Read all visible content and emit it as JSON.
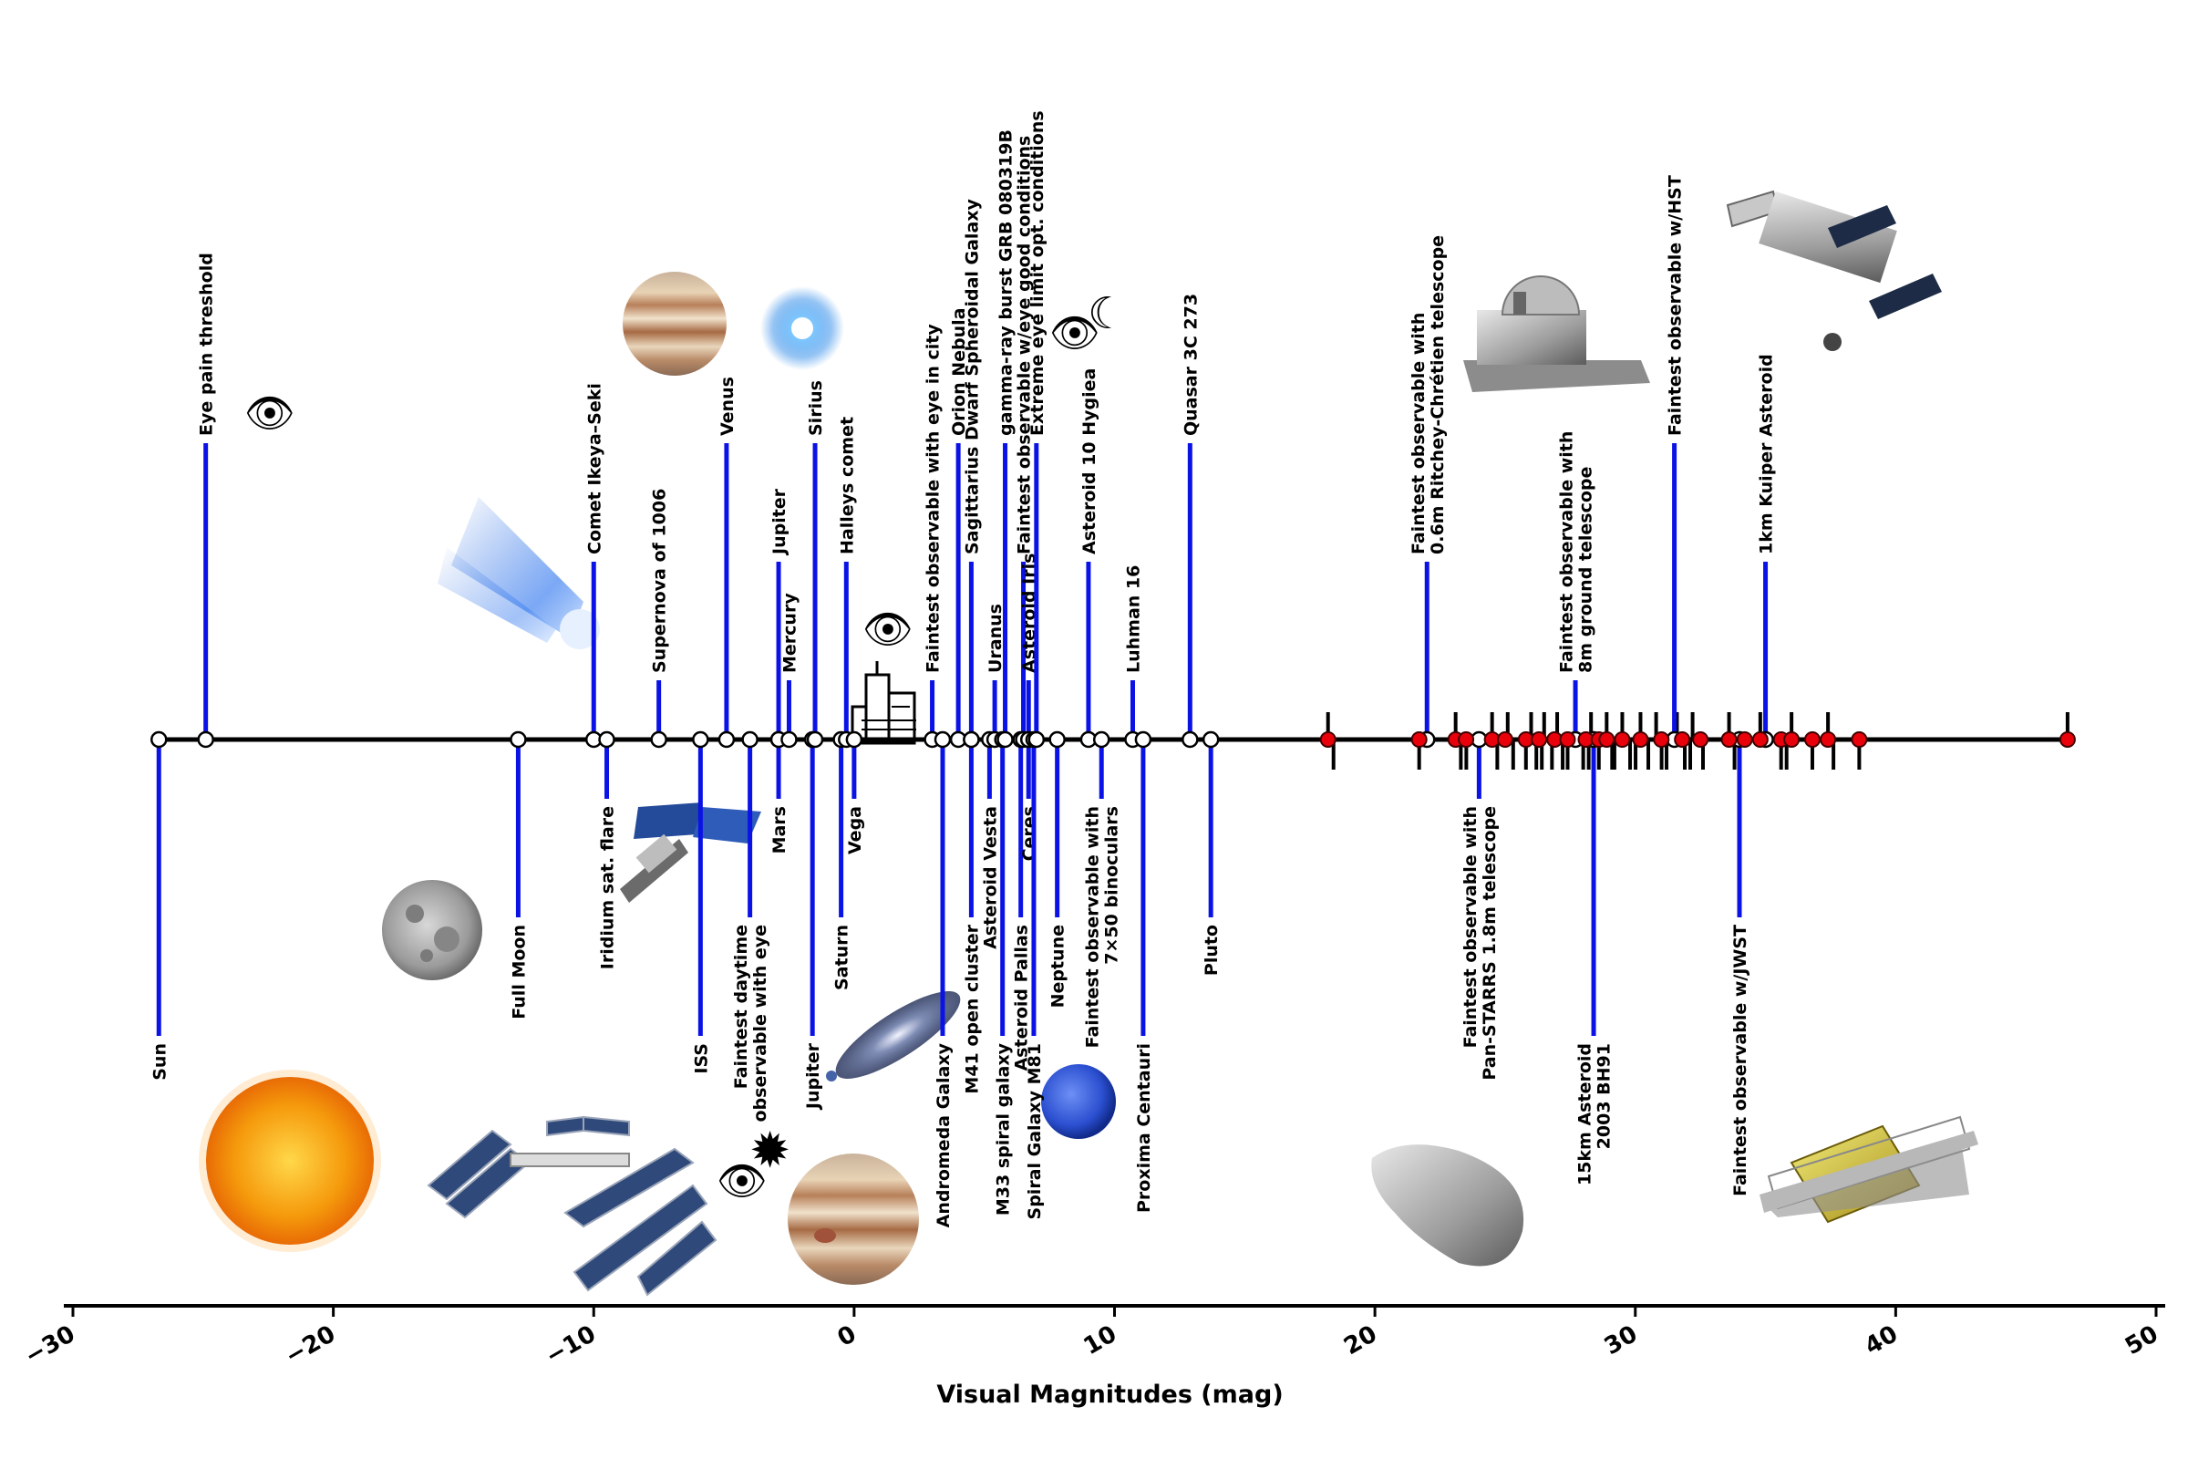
{
  "chart_data": {
    "type": "timeline",
    "xlabel": "Visual Magnitudes (mag)",
    "xlim": [
      -30,
      50
    ],
    "xticks": [
      -30,
      -20,
      -10,
      0,
      10,
      20,
      30,
      40,
      50
    ],
    "objects": [
      {
        "label": [
          "Sun"
        ],
        "mag": -26.7,
        "side": "below",
        "len": 3
      },
      {
        "label": [
          "Eye pain threshold"
        ],
        "mag": -24.9,
        "side": "above",
        "len": 3
      },
      {
        "label": [
          "Full Moon"
        ],
        "mag": -12.9,
        "side": "below",
        "len": 2
      },
      {
        "label": [
          "Comet Ikeya–Seki"
        ],
        "mag": -10.0,
        "side": "above",
        "len": 2
      },
      {
        "label": [
          "Iridium sat. flare"
        ],
        "mag": -9.5,
        "side": "below",
        "len": 1
      },
      {
        "label": [
          "Supernova of 1006"
        ],
        "mag": -7.5,
        "side": "above",
        "len": 1
      },
      {
        "label": [
          "ISS"
        ],
        "mag": -5.9,
        "side": "below",
        "len": 3
      },
      {
        "label": [
          "Venus"
        ],
        "mag": -4.9,
        "side": "above",
        "len": 3
      },
      {
        "label": [
          "Faintest daytime",
          "observable with eye"
        ],
        "mag": -4.0,
        "side": "below",
        "len": 2
      },
      {
        "label": [
          "Jupiter"
        ],
        "mag": -2.9,
        "side": "above",
        "len": 2
      },
      {
        "label": [
          "Mars"
        ],
        "mag": -2.9,
        "side": "below",
        "len": 1
      },
      {
        "label": [
          "Mercury"
        ],
        "mag": -2.5,
        "side": "above",
        "len": 1
      },
      {
        "label": [
          "Jupiter"
        ],
        "mag": -1.6,
        "side": "below",
        "len": 3
      },
      {
        "label": [
          "Sirius"
        ],
        "mag": -1.5,
        "side": "above",
        "len": 3
      },
      {
        "label": [
          "Saturn"
        ],
        "mag": -0.5,
        "side": "below",
        "len": 2
      },
      {
        "label": [
          "Halleys comet"
        ],
        "mag": -0.3,
        "side": "above",
        "len": 2
      },
      {
        "label": [
          "Vega"
        ],
        "mag": 0.0,
        "side": "below",
        "len": 1
      },
      {
        "label": [
          "Faintest observable with eye in city"
        ],
        "mag": 3.0,
        "side": "above",
        "len": 1
      },
      {
        "label": [
          "Andromeda Galaxy"
        ],
        "mag": 3.4,
        "side": "below",
        "len": 3
      },
      {
        "label": [
          "Orion Nebula"
        ],
        "mag": 4.0,
        "side": "above",
        "len": 3
      },
      {
        "label": [
          "M41 open cluster"
        ],
        "mag": 4.5,
        "side": "below",
        "len": 2
      },
      {
        "label": [
          "Sagittarius Dwarf Spheroidal Galaxy"
        ],
        "mag": 4.5,
        "side": "above",
        "len": 2
      },
      {
        "label": [
          "Asteroid Vesta"
        ],
        "mag": 5.2,
        "side": "below",
        "len": 1
      },
      {
        "label": [
          "Uranus"
        ],
        "mag": 5.4,
        "side": "above",
        "len": 1
      },
      {
        "label": [
          "M33 spiral galaxy"
        ],
        "mag": 5.7,
        "side": "below",
        "len": 3
      },
      {
        "label": [
          "gamma-ray burst GRB 080319B"
        ],
        "mag": 5.8,
        "side": "above",
        "len": 3
      },
      {
        "label": [
          "Asteroid Pallas"
        ],
        "mag": 6.4,
        "side": "below",
        "len": 2
      },
      {
        "label": [
          "Faintest observable w/eye good conditions"
        ],
        "mag": 6.5,
        "side": "above",
        "len": 2
      },
      {
        "label": [
          "Ceres"
        ],
        "mag": 6.7,
        "side": "below",
        "len": 1
      },
      {
        "label": [
          "Asteroid Iris"
        ],
        "mag": 6.7,
        "side": "above",
        "len": 1
      },
      {
        "label": [
          "Spiral Galaxy M81"
        ],
        "mag": 6.9,
        "side": "below",
        "len": 3
      },
      {
        "label": [
          "Extreme eye limit opt. conditions"
        ],
        "mag": 7.0,
        "side": "above",
        "len": 3
      },
      {
        "label": [
          "Neptune"
        ],
        "mag": 7.8,
        "side": "below",
        "len": 2
      },
      {
        "label": [
          "Asteroid 10 Hygiea"
        ],
        "mag": 9.0,
        "side": "above",
        "len": 2
      },
      {
        "label": [
          "Faintest observable with",
          "7×50 binoculars"
        ],
        "mag": 9.5,
        "side": "below",
        "len": 1
      },
      {
        "label": [
          "Luhman 16"
        ],
        "mag": 10.7,
        "side": "above",
        "len": 1
      },
      {
        "label": [
          "Proxima Centauri"
        ],
        "mag": 11.1,
        "side": "below",
        "len": 3
      },
      {
        "label": [
          "Quasar 3C 273"
        ],
        "mag": 12.9,
        "side": "above",
        "len": 3
      },
      {
        "label": [
          "Pluto"
        ],
        "mag": 13.7,
        "side": "below",
        "len": 2
      },
      {
        "label": [
          "Faintest observable with",
          "0.6m Ritchey-Chrétien telescope"
        ],
        "mag": 22.0,
        "side": "above",
        "len": 2
      },
      {
        "label": [
          "Faintest observable with",
          "Pan-STARRS 1.8m telescope"
        ],
        "mag": 24.0,
        "side": "below",
        "len": 1
      },
      {
        "label": [
          "Faintest observable with",
          "8m ground telescope"
        ],
        "mag": 27.7,
        "side": "above",
        "len": 1
      },
      {
        "label": [
          "15km Asteroid",
          "2003 BH91"
        ],
        "mag": 28.4,
        "side": "below",
        "len": 3
      },
      {
        "label": [
          "Faintest observable w/HST"
        ],
        "mag": 31.5,
        "side": "above",
        "len": 3
      },
      {
        "label": [
          "Faintest observable w/JWST"
        ],
        "mag": 34.0,
        "side": "below",
        "len": 2
      },
      {
        "label": [
          "1km Kuiper Asteroid"
        ],
        "mag": 35.0,
        "side": "above",
        "len": 2
      }
    ],
    "red_markers": [
      18.2,
      21.7,
      23.1,
      23.5,
      24.5,
      25.0,
      25.8,
      26.3,
      26.9,
      27.4,
      28.1,
      28.6,
      28.9,
      29.5,
      30.2,
      31.0,
      31.8,
      32.5,
      33.6,
      34.2,
      34.8,
      35.6,
      36.0,
      36.8,
      37.4,
      38.6,
      46.6
    ],
    "black_ticks": [
      18.2,
      21.7,
      23.1,
      23.3,
      24.5,
      24.7,
      25.1,
      25.8,
      26.0,
      26.2,
      26.5,
      26.8,
      27.0,
      27.4,
      27.7,
      28.0,
      28.3,
      28.6,
      28.9,
      29.2,
      29.5,
      29.8,
      30.2,
      30.5,
      30.8,
      31.2,
      31.6,
      31.9,
      32.2,
      32.6,
      33.6,
      34.0,
      34.8,
      35.6,
      36.0,
      36.8,
      37.4,
      38.6,
      46.6
    ],
    "colors": {
      "stem": "#0a12e6",
      "axis": "#000000",
      "marker_open": "#ffffff",
      "marker_red": "#e8000b"
    }
  },
  "pictograms": {
    "eye_icon": "👁",
    "crescent_icon": "☾",
    "sun_burst_icon": "✹"
  }
}
